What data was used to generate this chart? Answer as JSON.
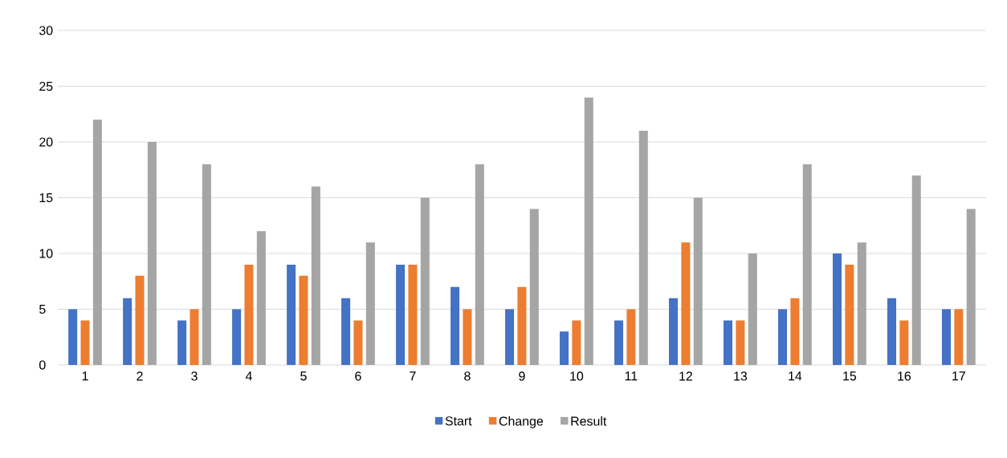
{
  "chart_data": {
    "type": "bar",
    "categories": [
      "1",
      "2",
      "3",
      "4",
      "5",
      "6",
      "7",
      "8",
      "9",
      "10",
      "11",
      "12",
      "13",
      "14",
      "15",
      "16",
      "17"
    ],
    "series": [
      {
        "name": "Start",
        "color": "#4472c4",
        "values": [
          5,
          6,
          4,
          5,
          9,
          6,
          9,
          7,
          5,
          3,
          4,
          6,
          4,
          5,
          10,
          6,
          5
        ]
      },
      {
        "name": "Change",
        "color": "#ed7d31",
        "values": [
          4,
          8,
          5,
          9,
          8,
          4,
          9,
          5,
          7,
          4,
          5,
          11,
          4,
          6,
          9,
          4,
          5
        ]
      },
      {
        "name": "Result",
        "color": "#a5a5a5",
        "values": [
          22,
          20,
          18,
          12,
          16,
          11,
          15,
          18,
          14,
          24,
          21,
          15,
          10,
          18,
          11,
          17,
          14
        ]
      }
    ],
    "ylim": [
      0,
      30
    ],
    "yticks": [
      0,
      5,
      10,
      15,
      20,
      25,
      30
    ],
    "grid": "y",
    "legend": "bottom"
  }
}
